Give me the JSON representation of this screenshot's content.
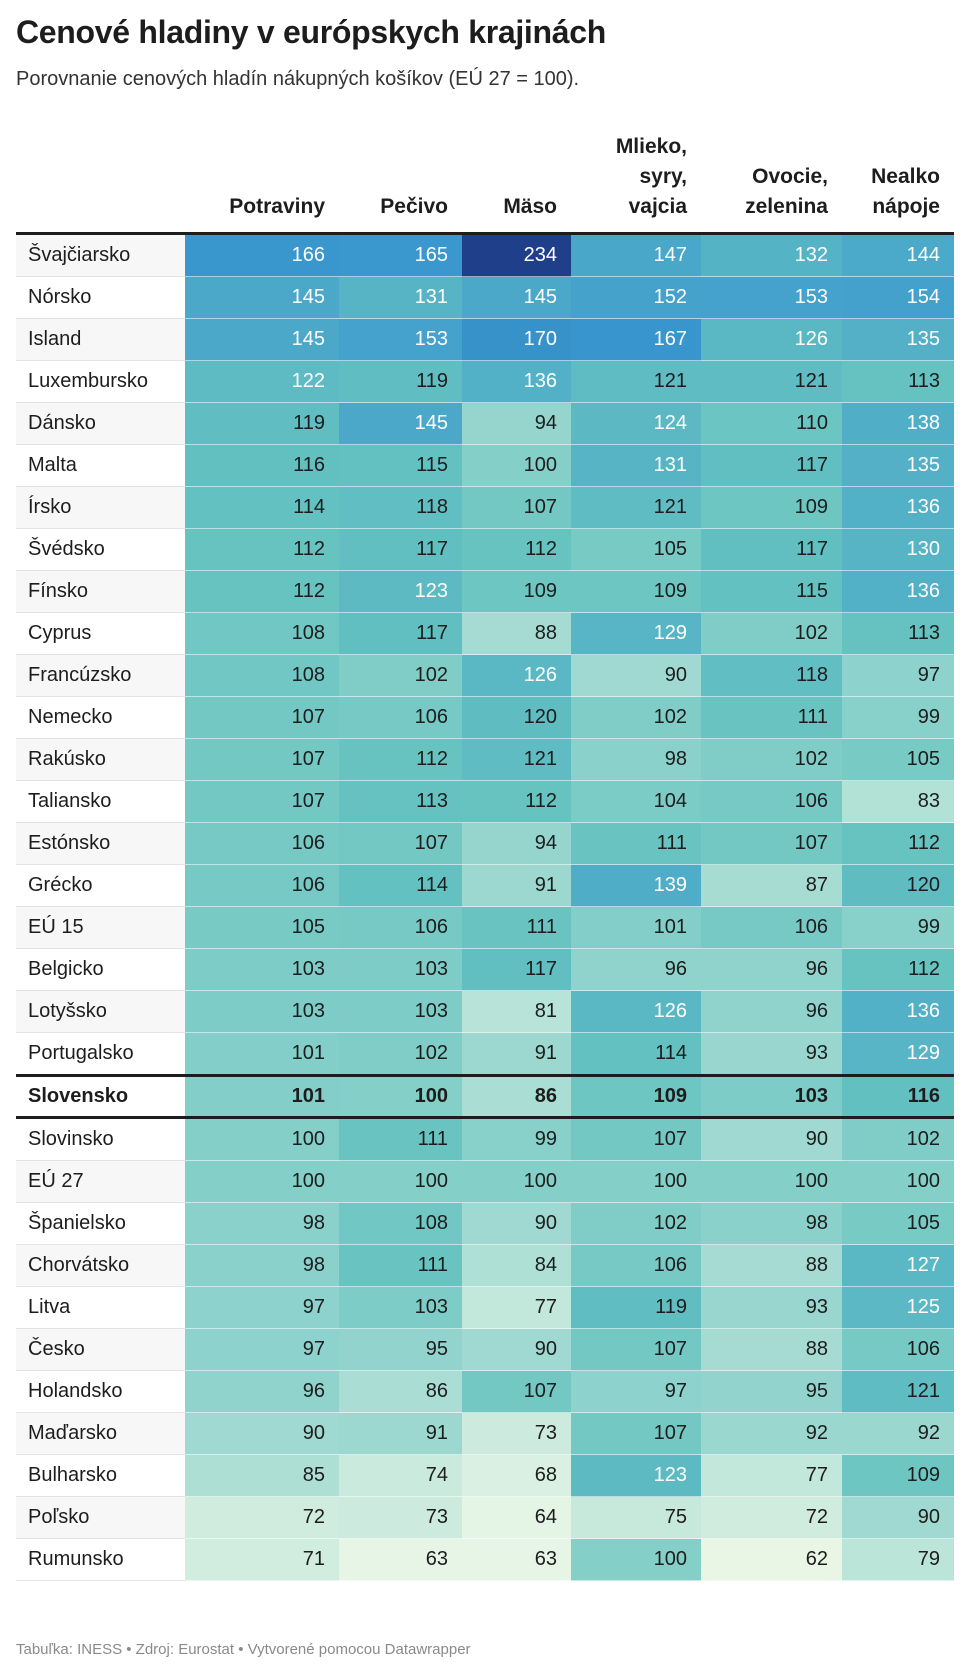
{
  "title": "Cenové hladiny v európskych krajinách",
  "subtitle": "Porovnanie cenových hladín nákupných košíkov (EÚ 27 = 100).",
  "footer": "Tabuľka: INESS • Zdroj: Eurostat • Vytvorené pomocou Datawrapper",
  "colors": {
    "low": "#eef8e8",
    "mid": "#66c3c0",
    "high": "#3a98cf",
    "max": "#1f3f8a",
    "text_dark": "#1d1d1d",
    "text_light": "#ffffff"
  },
  "chart_data": {
    "type": "table",
    "title": "Cenové hladiny v európskych krajinách",
    "subtitle": "Porovnanie cenových hladín nákupných košíkov (EÚ 27 = 100).",
    "columns": [
      "Potraviny",
      "Pečivo",
      "Mäso",
      "Mlieko,\nsyry,\nvajcia",
      "Ovocie,\nzelenina",
      "Nealko\nnápoje"
    ],
    "highlight_row": "Slovensko",
    "rows": [
      {
        "name": "Švajčiarsko",
        "values": [
          166,
          165,
          234,
          147,
          132,
          144
        ]
      },
      {
        "name": "Nórsko",
        "values": [
          145,
          131,
          145,
          152,
          153,
          154
        ]
      },
      {
        "name": "Island",
        "values": [
          145,
          153,
          170,
          167,
          126,
          135
        ]
      },
      {
        "name": "Luxembursko",
        "values": [
          122,
          119,
          136,
          121,
          121,
          113
        ]
      },
      {
        "name": "Dánsko",
        "values": [
          119,
          145,
          94,
          124,
          110,
          138
        ]
      },
      {
        "name": "Malta",
        "values": [
          116,
          115,
          100,
          131,
          117,
          135
        ]
      },
      {
        "name": "Írsko",
        "values": [
          114,
          118,
          107,
          121,
          109,
          136
        ]
      },
      {
        "name": "Švédsko",
        "values": [
          112,
          117,
          112,
          105,
          117,
          130
        ]
      },
      {
        "name": "Fínsko",
        "values": [
          112,
          123,
          109,
          109,
          115,
          136
        ]
      },
      {
        "name": "Cyprus",
        "values": [
          108,
          117,
          88,
          129,
          102,
          113
        ]
      },
      {
        "name": "Francúzsko",
        "values": [
          108,
          102,
          126,
          90,
          118,
          97
        ]
      },
      {
        "name": "Nemecko",
        "values": [
          107,
          106,
          120,
          102,
          111,
          99
        ]
      },
      {
        "name": "Rakúsko",
        "values": [
          107,
          112,
          121,
          98,
          102,
          105
        ]
      },
      {
        "name": "Taliansko",
        "values": [
          107,
          113,
          112,
          104,
          106,
          83
        ]
      },
      {
        "name": "Estónsko",
        "values": [
          106,
          107,
          94,
          111,
          107,
          112
        ]
      },
      {
        "name": "Grécko",
        "values": [
          106,
          114,
          91,
          139,
          87,
          120
        ]
      },
      {
        "name": "EÚ 15",
        "values": [
          105,
          106,
          111,
          101,
          106,
          99
        ]
      },
      {
        "name": "Belgicko",
        "values": [
          103,
          103,
          117,
          96,
          96,
          112
        ]
      },
      {
        "name": "Lotyšsko",
        "values": [
          103,
          103,
          81,
          126,
          96,
          136
        ]
      },
      {
        "name": "Portugalsko",
        "values": [
          101,
          102,
          91,
          114,
          93,
          129
        ]
      },
      {
        "name": "Slovensko",
        "values": [
          101,
          100,
          86,
          109,
          103,
          116
        ]
      },
      {
        "name": "Slovinsko",
        "values": [
          100,
          111,
          99,
          107,
          90,
          102
        ]
      },
      {
        "name": "EÚ 27",
        "values": [
          100,
          100,
          100,
          100,
          100,
          100
        ]
      },
      {
        "name": "Španielsko",
        "values": [
          98,
          108,
          90,
          102,
          98,
          105
        ]
      },
      {
        "name": "Chorvátsko",
        "values": [
          98,
          111,
          84,
          106,
          88,
          127
        ]
      },
      {
        "name": "Litva",
        "values": [
          97,
          103,
          77,
          119,
          93,
          125
        ]
      },
      {
        "name": "Česko",
        "values": [
          97,
          95,
          90,
          107,
          88,
          106
        ]
      },
      {
        "name": "Holandsko",
        "values": [
          96,
          86,
          107,
          97,
          95,
          121
        ]
      },
      {
        "name": "Maďarsko",
        "values": [
          90,
          91,
          73,
          107,
          92,
          92
        ]
      },
      {
        "name": "Bulharsko",
        "values": [
          85,
          74,
          68,
          123,
          77,
          109
        ]
      },
      {
        "name": "Poľsko",
        "values": [
          72,
          73,
          64,
          75,
          72,
          90
        ]
      },
      {
        "name": "Rumunsko",
        "values": [
          71,
          63,
          63,
          100,
          62,
          79
        ]
      }
    ]
  }
}
